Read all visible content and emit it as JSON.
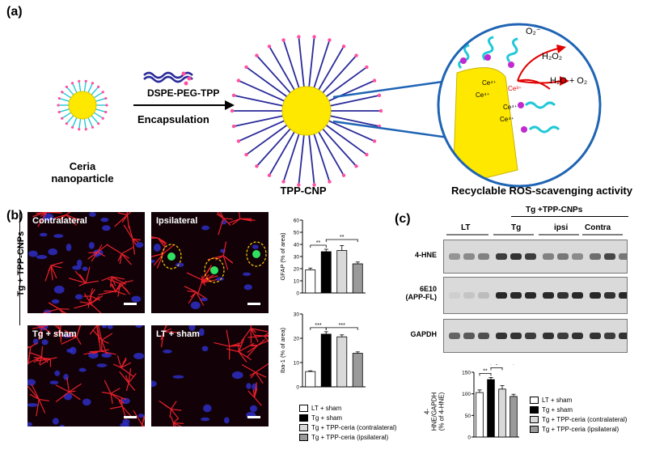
{
  "panel_a": {
    "label": "(a)",
    "reagent": "DSPE-PEG-TPP",
    "process": "Encapsulation",
    "ceria_caption": "Ceria\nnanoparticle",
    "tpp_caption": "TPP-CNP",
    "ros_caption": "Recyclable ROS-scavenging activity",
    "ros_superoxide": "O₂⁻",
    "ros_h2o2": "H₂O₂",
    "ros_products": "H₂O + O₂"
  },
  "panel_b": {
    "label": "(b)",
    "side_label": "Tg + TPP-CNPs",
    "images": [
      "Contralateral",
      "Ipsilateral",
      "Tg + sham",
      "LT + sham"
    ],
    "legend": [
      "LT + sham",
      "Tg + sham",
      "Tg + TPP-ceria (contralateral)",
      "Tg + TPP-ceria (ipsilateral)"
    ]
  },
  "panel_c": {
    "label": "(c)",
    "header": "Tg +TPP-CNPs",
    "groups": [
      "LT",
      "Tg",
      "ipsi",
      "Contra"
    ],
    "blots": [
      "4-HNE",
      "6E10\n(APP-FL)",
      "GAPDH"
    ],
    "legend": [
      "LT + sham",
      "Tg + sham",
      "Tg + TPP-ceria (contralateral)",
      "Tg + TPP-ceria (ipsilateral)"
    ]
  },
  "colors": {
    "lt": "#ffffff",
    "tg": "#000000",
    "contra": "#d9d9d9",
    "ipsi": "#9a9a9a",
    "chain": "#2a2a9a",
    "tail": "#22c8d8",
    "core": "#ffe800"
  },
  "chart_data": [
    {
      "type": "bar",
      "ylabel": "GFAP (% of area)",
      "ylim": [
        0,
        60
      ],
      "yticks": [
        "0",
        "10",
        "20",
        "30",
        "40",
        "50",
        "60"
      ],
      "categories": [
        "LT + sham",
        "Tg + sham",
        "Tg + TPP-ceria (contralateral)",
        "Tg + TPP-ceria (ipsilateral)"
      ],
      "values": [
        19,
        34,
        35,
        24
      ],
      "errors": [
        1.5,
        2,
        4,
        1.5
      ],
      "significance": [
        "**",
        "**"
      ]
    },
    {
      "type": "bar",
      "ylabel": "Iba-1 (% of area)",
      "ylim": [
        0,
        30
      ],
      "yticks": [
        "0",
        "10",
        "20",
        "30"
      ],
      "categories": [
        "LT + sham",
        "Tg + sham",
        "Tg + TPP-ceria (contralateral)",
        "Tg + TPP-ceria (ipsilateral)"
      ],
      "values": [
        6.3,
        21.7,
        20.6,
        13.8
      ],
      "errors": [
        0.3,
        1,
        0.8,
        0.6
      ],
      "significance": [
        "***",
        "***"
      ]
    },
    {
      "type": "bar",
      "ylabel": "4-HNE/GAPDH\n(% of 4-HNE)",
      "ylim": [
        0,
        150
      ],
      "yticks": [
        "0",
        "50",
        "100",
        "150"
      ],
      "categories": [
        "LT + sham",
        "Tg + sham",
        "Tg + TPP-ceria (contralateral)",
        "Tg + TPP-ceria (ipsilateral)"
      ],
      "values": [
        103,
        133,
        111,
        94
      ],
      "errors": [
        6,
        5,
        8,
        5
      ],
      "significance": [
        "**",
        "*",
        "***"
      ]
    }
  ]
}
